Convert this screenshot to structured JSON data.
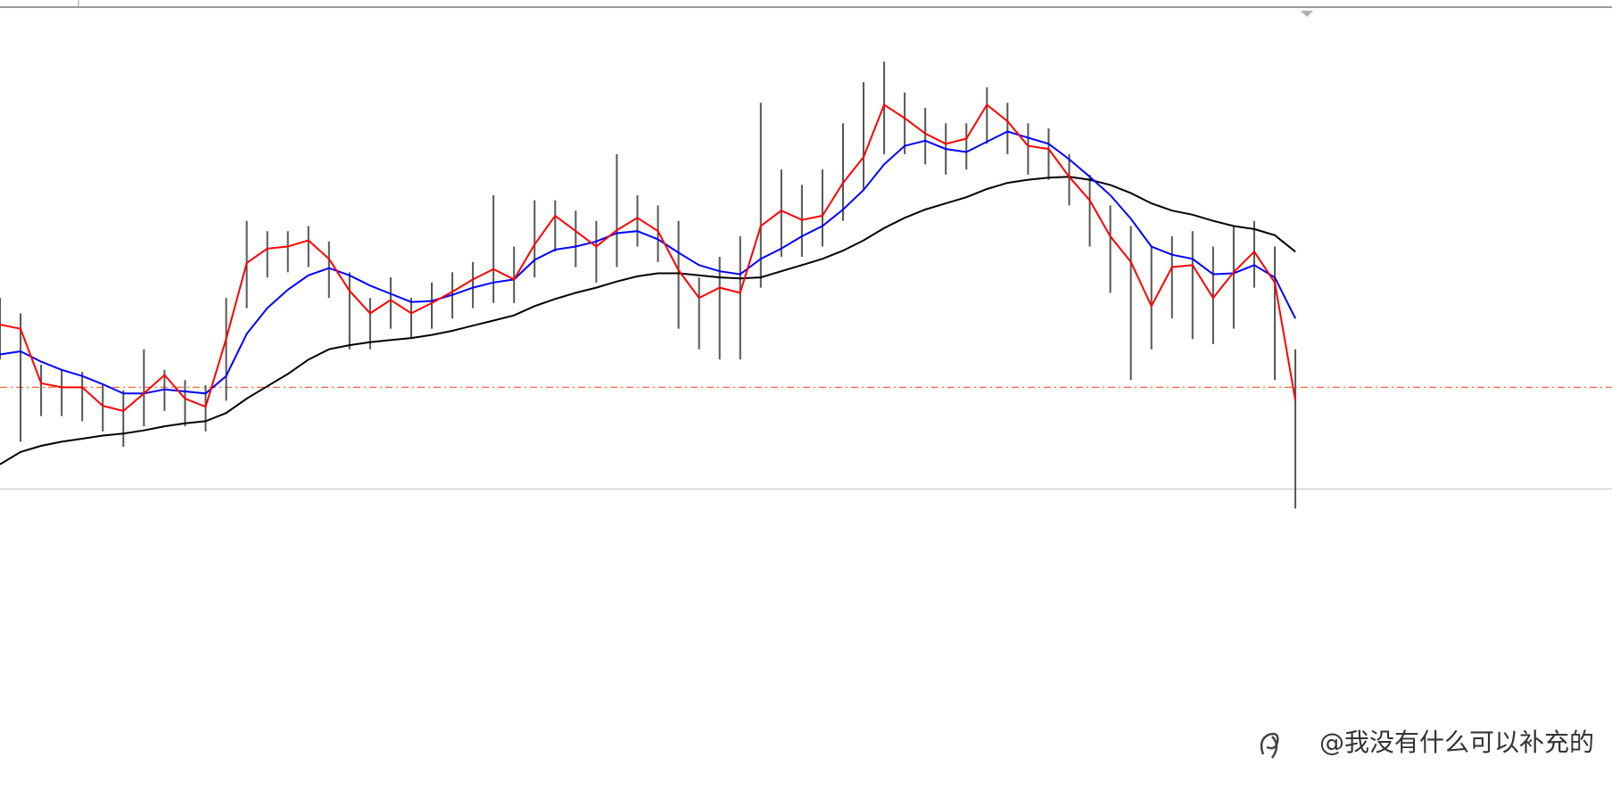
{
  "chart_data": {
    "type": "price-bars",
    "x": [
      0,
      1,
      2,
      3,
      4,
      5,
      6,
      7,
      8,
      9,
      10,
      11,
      12,
      13,
      14,
      15,
      16,
      17,
      18,
      19,
      20,
      21,
      22,
      23,
      24,
      25,
      26,
      27,
      28,
      29,
      30,
      31,
      32,
      33,
      34,
      35,
      36,
      37,
      38,
      39,
      40,
      41,
      42,
      43,
      44,
      45,
      46,
      47,
      48,
      49,
      50,
      51,
      52,
      53,
      54,
      55,
      56,
      57,
      58,
      59,
      60,
      61,
      62,
      63
    ],
    "xlim": [
      0,
      78.4
    ],
    "ylim": [
      -9,
      760
    ],
    "bar_color": "#555555",
    "high": [
      470,
      455,
      405,
      400,
      398,
      385,
      380,
      420,
      400,
      390,
      385,
      470,
      545,
      535,
      535,
      540,
      525,
      495,
      470,
      490,
      470,
      485,
      495,
      505,
      570,
      520,
      565,
      565,
      555,
      545,
      610,
      570,
      560,
      545,
      490,
      510,
      530,
      660,
      595,
      580,
      595,
      640,
      680,
      700,
      670,
      655,
      640,
      640,
      675,
      660,
      640,
      635,
      610,
      590,
      560,
      540,
      520,
      530,
      535,
      520,
      540,
      545,
      520,
      420
    ],
    "low": [
      410,
      330,
      355,
      355,
      350,
      340,
      325,
      345,
      360,
      345,
      340,
      370,
      460,
      490,
      495,
      500,
      470,
      420,
      420,
      440,
      430,
      440,
      450,
      460,
      465,
      465,
      490,
      515,
      500,
      485,
      500,
      520,
      505,
      440,
      420,
      410,
      410,
      480,
      510,
      510,
      520,
      545,
      575,
      610,
      610,
      600,
      590,
      595,
      620,
      610,
      590,
      585,
      560,
      520,
      475,
      390,
      420,
      450,
      430,
      425,
      440,
      480,
      390,
      265
    ],
    "lines": [
      {
        "color": "#000000",
        "values": [
          308,
          320,
          326,
          330,
          333,
          336,
          338,
          341,
          345,
          348,
          350,
          358,
          372,
          384,
          396,
          410,
          420,
          424,
          427,
          429,
          431,
          434,
          438,
          443,
          448,
          453,
          462,
          469,
          475,
          480,
          486,
          491,
          494,
          494,
          492,
          490,
          489,
          490,
          496,
          502,
          508,
          516,
          526,
          538,
          548,
          556,
          562,
          568,
          576,
          582,
          585,
          587,
          588,
          585,
          580,
          572,
          562,
          555,
          551,
          545,
          540,
          537,
          531,
          515
        ]
      },
      {
        "color": "#0000ff",
        "values": [
          415,
          418,
          408,
          400,
          394,
          386,
          377,
          377,
          381,
          379,
          377,
          394,
          435,
          460,
          478,
          492,
          499,
          492,
          482,
          474,
          466,
          467,
          473,
          480,
          485,
          488,
          507,
          517,
          520,
          525,
          533,
          535,
          527,
          514,
          502,
          496,
          493,
          508,
          518,
          530,
          540,
          556,
          575,
          600,
          618,
          623,
          615,
          612,
          622,
          632,
          626,
          620,
          605,
          588,
          570,
          547,
          520,
          512,
          508,
          493,
          494,
          502,
          490,
          450
        ]
      },
      {
        "color": "#ff0000",
        "values": [
          444,
          440,
          387,
          383,
          383,
          365,
          360,
          377,
          395,
          372,
          364,
          430,
          504,
          518,
          520,
          526,
          508,
          477,
          455,
          468,
          455,
          465,
          476,
          488,
          498,
          488,
          522,
          550,
          535,
          520,
          536,
          548,
          535,
          497,
          470,
          480,
          475,
          540,
          555,
          546,
          550,
          582,
          607,
          658,
          645,
          630,
          620,
          625,
          658,
          642,
          618,
          615,
          588,
          565,
          530,
          505,
          462,
          500,
          502,
          470,
          495,
          515,
          485,
          370
        ]
      }
    ],
    "levels": [
      {
        "value": 383,
        "color": "#ff6a3d",
        "style": "dash-dot"
      },
      {
        "value": 284,
        "color": "#c8c8c8",
        "style": "solid"
      }
    ]
  },
  "watermark": "@我没有什么可以补充的"
}
